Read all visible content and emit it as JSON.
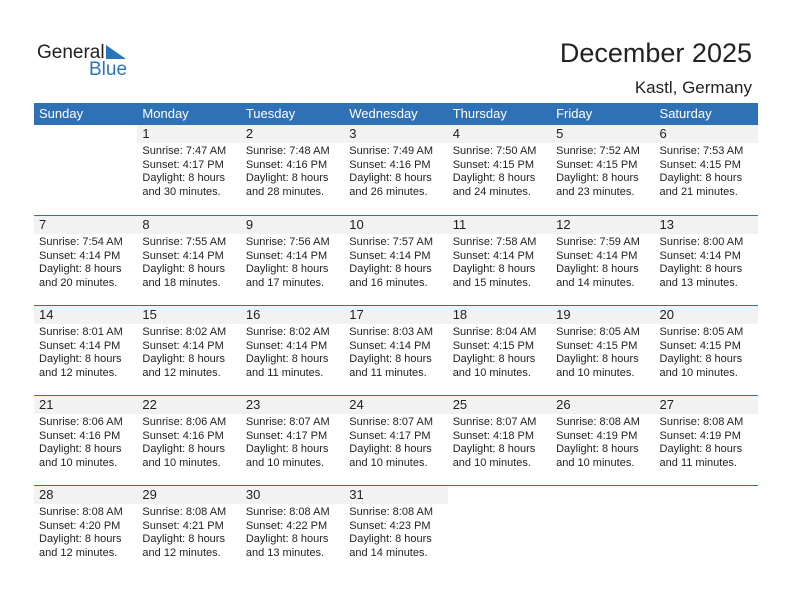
{
  "logo": {
    "line1": "General",
    "line2": "Blue"
  },
  "title": "December 2025",
  "location": "Kastl, Germany",
  "colors": {
    "accent": "#2e71b5",
    "day_band": "#f2f2f2"
  },
  "weekdays": [
    "Sunday",
    "Monday",
    "Tuesday",
    "Wednesday",
    "Thursday",
    "Friday",
    "Saturday"
  ],
  "weeks": [
    [
      null,
      {
        "day": "1",
        "sunrise": "Sunrise: 7:47 AM",
        "sunset": "Sunset: 4:17 PM",
        "daylight1": "Daylight: 8 hours",
        "daylight2": "and 30 minutes."
      },
      {
        "day": "2",
        "sunrise": "Sunrise: 7:48 AM",
        "sunset": "Sunset: 4:16 PM",
        "daylight1": "Daylight: 8 hours",
        "daylight2": "and 28 minutes."
      },
      {
        "day": "3",
        "sunrise": "Sunrise: 7:49 AM",
        "sunset": "Sunset: 4:16 PM",
        "daylight1": "Daylight: 8 hours",
        "daylight2": "and 26 minutes."
      },
      {
        "day": "4",
        "sunrise": "Sunrise: 7:50 AM",
        "sunset": "Sunset: 4:15 PM",
        "daylight1": "Daylight: 8 hours",
        "daylight2": "and 24 minutes."
      },
      {
        "day": "5",
        "sunrise": "Sunrise: 7:52 AM",
        "sunset": "Sunset: 4:15 PM",
        "daylight1": "Daylight: 8 hours",
        "daylight2": "and 23 minutes."
      },
      {
        "day": "6",
        "sunrise": "Sunrise: 7:53 AM",
        "sunset": "Sunset: 4:15 PM",
        "daylight1": "Daylight: 8 hours",
        "daylight2": "and 21 minutes."
      }
    ],
    [
      {
        "day": "7",
        "sunrise": "Sunrise: 7:54 AM",
        "sunset": "Sunset: 4:14 PM",
        "daylight1": "Daylight: 8 hours",
        "daylight2": "and 20 minutes."
      },
      {
        "day": "8",
        "sunrise": "Sunrise: 7:55 AM",
        "sunset": "Sunset: 4:14 PM",
        "daylight1": "Daylight: 8 hours",
        "daylight2": "and 18 minutes."
      },
      {
        "day": "9",
        "sunrise": "Sunrise: 7:56 AM",
        "sunset": "Sunset: 4:14 PM",
        "daylight1": "Daylight: 8 hours",
        "daylight2": "and 17 minutes."
      },
      {
        "day": "10",
        "sunrise": "Sunrise: 7:57 AM",
        "sunset": "Sunset: 4:14 PM",
        "daylight1": "Daylight: 8 hours",
        "daylight2": "and 16 minutes."
      },
      {
        "day": "11",
        "sunrise": "Sunrise: 7:58 AM",
        "sunset": "Sunset: 4:14 PM",
        "daylight1": "Daylight: 8 hours",
        "daylight2": "and 15 minutes."
      },
      {
        "day": "12",
        "sunrise": "Sunrise: 7:59 AM",
        "sunset": "Sunset: 4:14 PM",
        "daylight1": "Daylight: 8 hours",
        "daylight2": "and 14 minutes."
      },
      {
        "day": "13",
        "sunrise": "Sunrise: 8:00 AM",
        "sunset": "Sunset: 4:14 PM",
        "daylight1": "Daylight: 8 hours",
        "daylight2": "and 13 minutes."
      }
    ],
    [
      {
        "day": "14",
        "sunrise": "Sunrise: 8:01 AM",
        "sunset": "Sunset: 4:14 PM",
        "daylight1": "Daylight: 8 hours",
        "daylight2": "and 12 minutes."
      },
      {
        "day": "15",
        "sunrise": "Sunrise: 8:02 AM",
        "sunset": "Sunset: 4:14 PM",
        "daylight1": "Daylight: 8 hours",
        "daylight2": "and 12 minutes."
      },
      {
        "day": "16",
        "sunrise": "Sunrise: 8:02 AM",
        "sunset": "Sunset: 4:14 PM",
        "daylight1": "Daylight: 8 hours",
        "daylight2": "and 11 minutes."
      },
      {
        "day": "17",
        "sunrise": "Sunrise: 8:03 AM",
        "sunset": "Sunset: 4:14 PM",
        "daylight1": "Daylight: 8 hours",
        "daylight2": "and 11 minutes."
      },
      {
        "day": "18",
        "sunrise": "Sunrise: 8:04 AM",
        "sunset": "Sunset: 4:15 PM",
        "daylight1": "Daylight: 8 hours",
        "daylight2": "and 10 minutes."
      },
      {
        "day": "19",
        "sunrise": "Sunrise: 8:05 AM",
        "sunset": "Sunset: 4:15 PM",
        "daylight1": "Daylight: 8 hours",
        "daylight2": "and 10 minutes."
      },
      {
        "day": "20",
        "sunrise": "Sunrise: 8:05 AM",
        "sunset": "Sunset: 4:15 PM",
        "daylight1": "Daylight: 8 hours",
        "daylight2": "and 10 minutes."
      }
    ],
    [
      {
        "day": "21",
        "sunrise": "Sunrise: 8:06 AM",
        "sunset": "Sunset: 4:16 PM",
        "daylight1": "Daylight: 8 hours",
        "daylight2": "and 10 minutes."
      },
      {
        "day": "22",
        "sunrise": "Sunrise: 8:06 AM",
        "sunset": "Sunset: 4:16 PM",
        "daylight1": "Daylight: 8 hours",
        "daylight2": "and 10 minutes."
      },
      {
        "day": "23",
        "sunrise": "Sunrise: 8:07 AM",
        "sunset": "Sunset: 4:17 PM",
        "daylight1": "Daylight: 8 hours",
        "daylight2": "and 10 minutes."
      },
      {
        "day": "24",
        "sunrise": "Sunrise: 8:07 AM",
        "sunset": "Sunset: 4:17 PM",
        "daylight1": "Daylight: 8 hours",
        "daylight2": "and 10 minutes."
      },
      {
        "day": "25",
        "sunrise": "Sunrise: 8:07 AM",
        "sunset": "Sunset: 4:18 PM",
        "daylight1": "Daylight: 8 hours",
        "daylight2": "and 10 minutes."
      },
      {
        "day": "26",
        "sunrise": "Sunrise: 8:08 AM",
        "sunset": "Sunset: 4:19 PM",
        "daylight1": "Daylight: 8 hours",
        "daylight2": "and 10 minutes."
      },
      {
        "day": "27",
        "sunrise": "Sunrise: 8:08 AM",
        "sunset": "Sunset: 4:19 PM",
        "daylight1": "Daylight: 8 hours",
        "daylight2": "and 11 minutes."
      }
    ],
    [
      {
        "day": "28",
        "sunrise": "Sunrise: 8:08 AM",
        "sunset": "Sunset: 4:20 PM",
        "daylight1": "Daylight: 8 hours",
        "daylight2": "and 12 minutes."
      },
      {
        "day": "29",
        "sunrise": "Sunrise: 8:08 AM",
        "sunset": "Sunset: 4:21 PM",
        "daylight1": "Daylight: 8 hours",
        "daylight2": "and 12 minutes."
      },
      {
        "day": "30",
        "sunrise": "Sunrise: 8:08 AM",
        "sunset": "Sunset: 4:22 PM",
        "daylight1": "Daylight: 8 hours",
        "daylight2": "and 13 minutes."
      },
      {
        "day": "31",
        "sunrise": "Sunrise: 8:08 AM",
        "sunset": "Sunset: 4:23 PM",
        "daylight1": "Daylight: 8 hours",
        "daylight2": "and 14 minutes."
      },
      null,
      null,
      null
    ]
  ]
}
